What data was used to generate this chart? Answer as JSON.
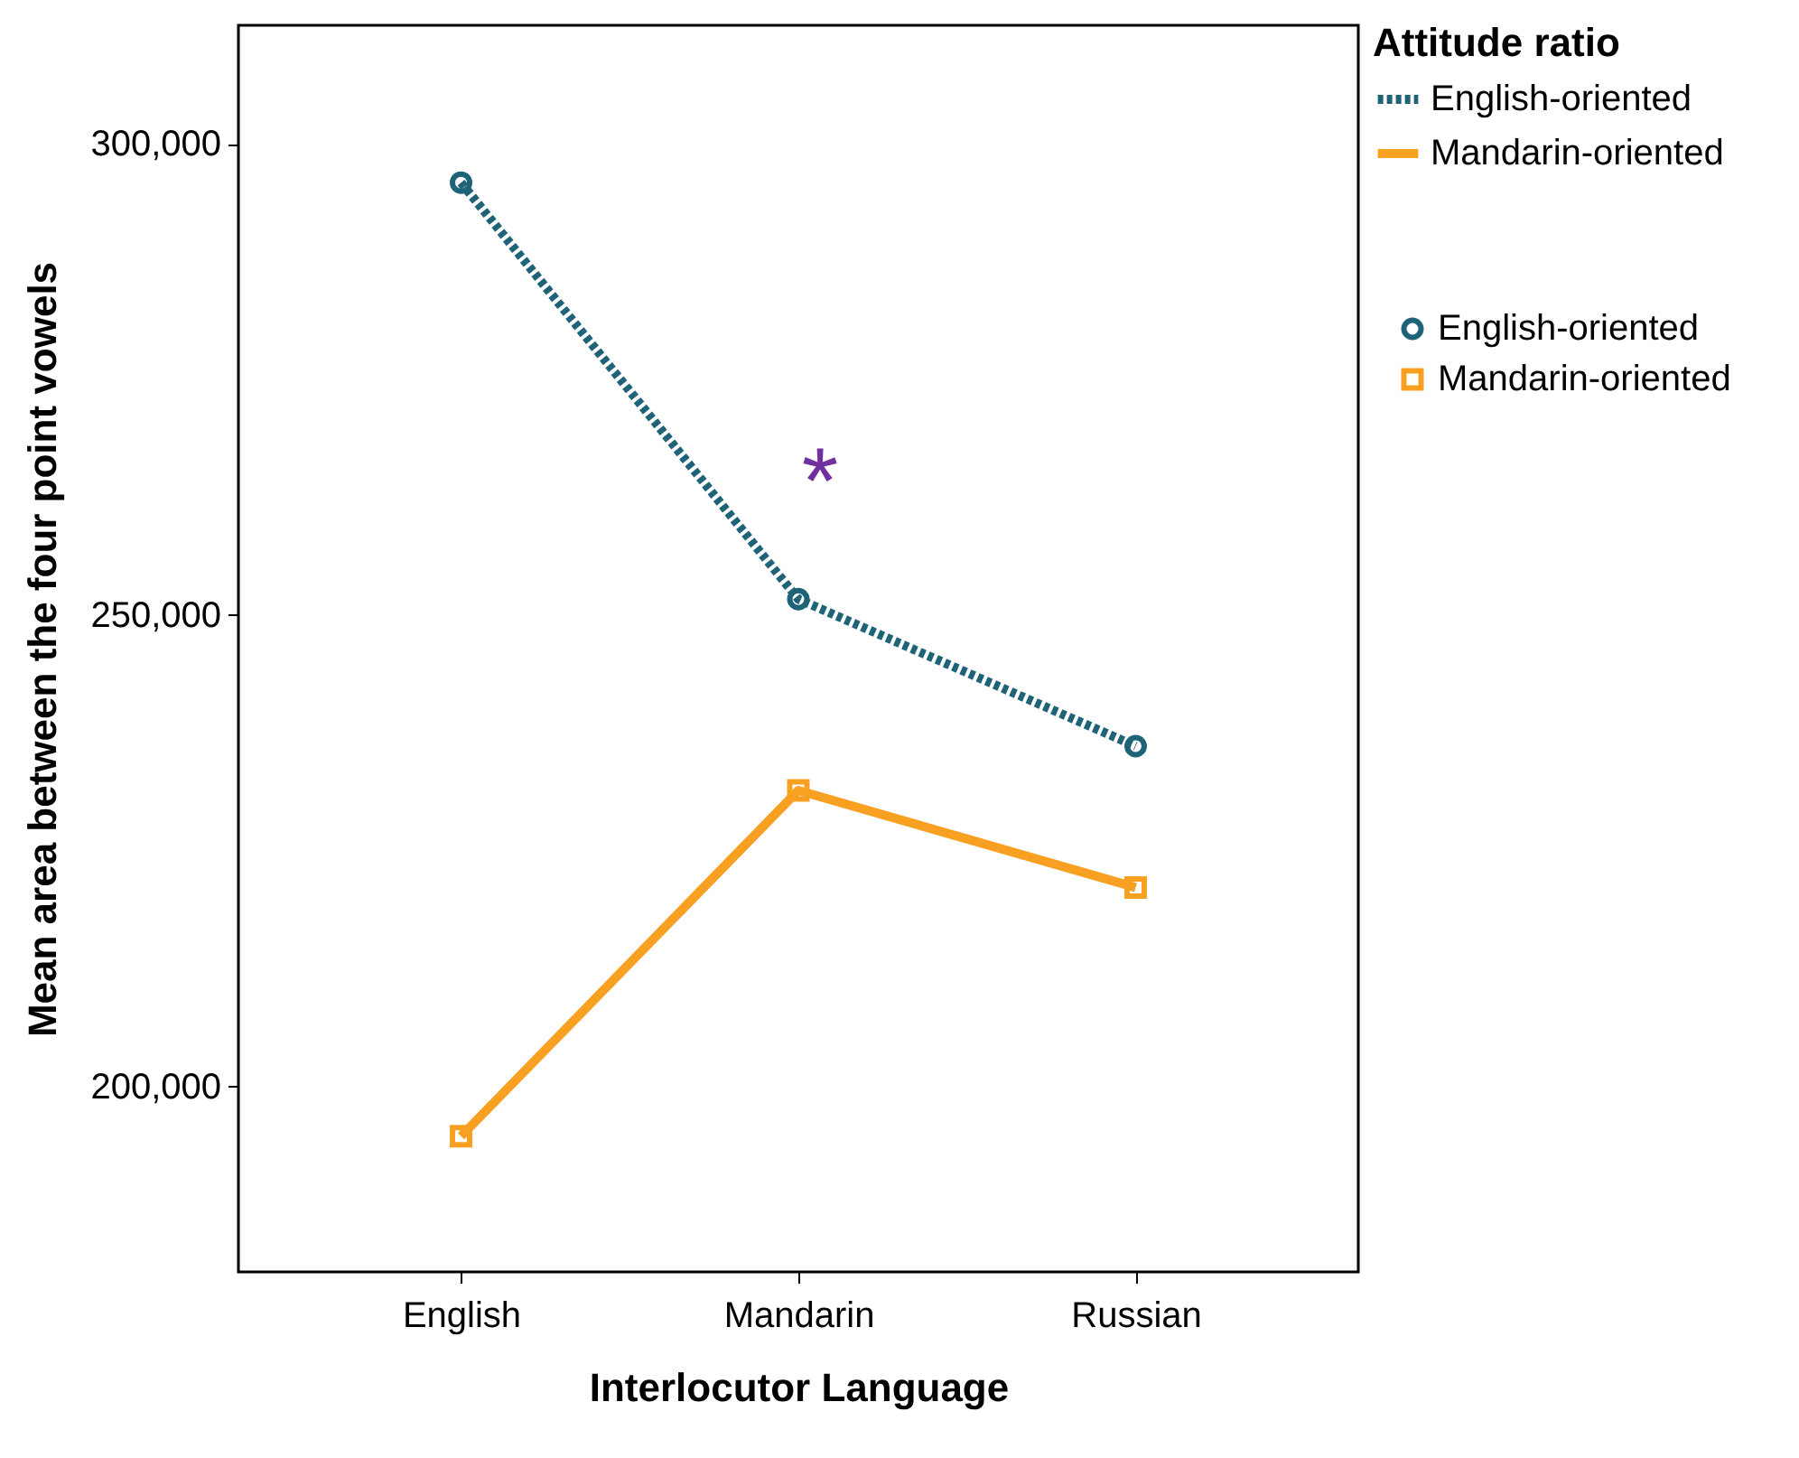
{
  "chart_data": {
    "type": "line",
    "xlabel": "Interlocutor Language",
    "ylabel": "Mean area between the four point vowels",
    "legend_title": "Attitude ratio",
    "categories": [
      "English",
      "Mandarin",
      "Russian"
    ],
    "series": [
      {
        "name": "English-oriented",
        "color": "#1f6378",
        "values": [
          295900,
          251700,
          236100
        ],
        "line_style": "dotted",
        "marker": "circle"
      },
      {
        "name": "Mandarin-oriented",
        "color": "#f7a022",
        "values": [
          194700,
          231400,
          221100
        ],
        "line_style": "solid",
        "marker": "square"
      }
    ],
    "ylim": [
      180300,
      312600
    ],
    "yticks": [
      {
        "value": 200000,
        "label": "200,000"
      },
      {
        "value": 250000,
        "label": "250,000"
      },
      {
        "value": 300000,
        "label": "300,000"
      }
    ],
    "annotations": [
      "*"
    ],
    "grid": false,
    "legend": "top right"
  }
}
